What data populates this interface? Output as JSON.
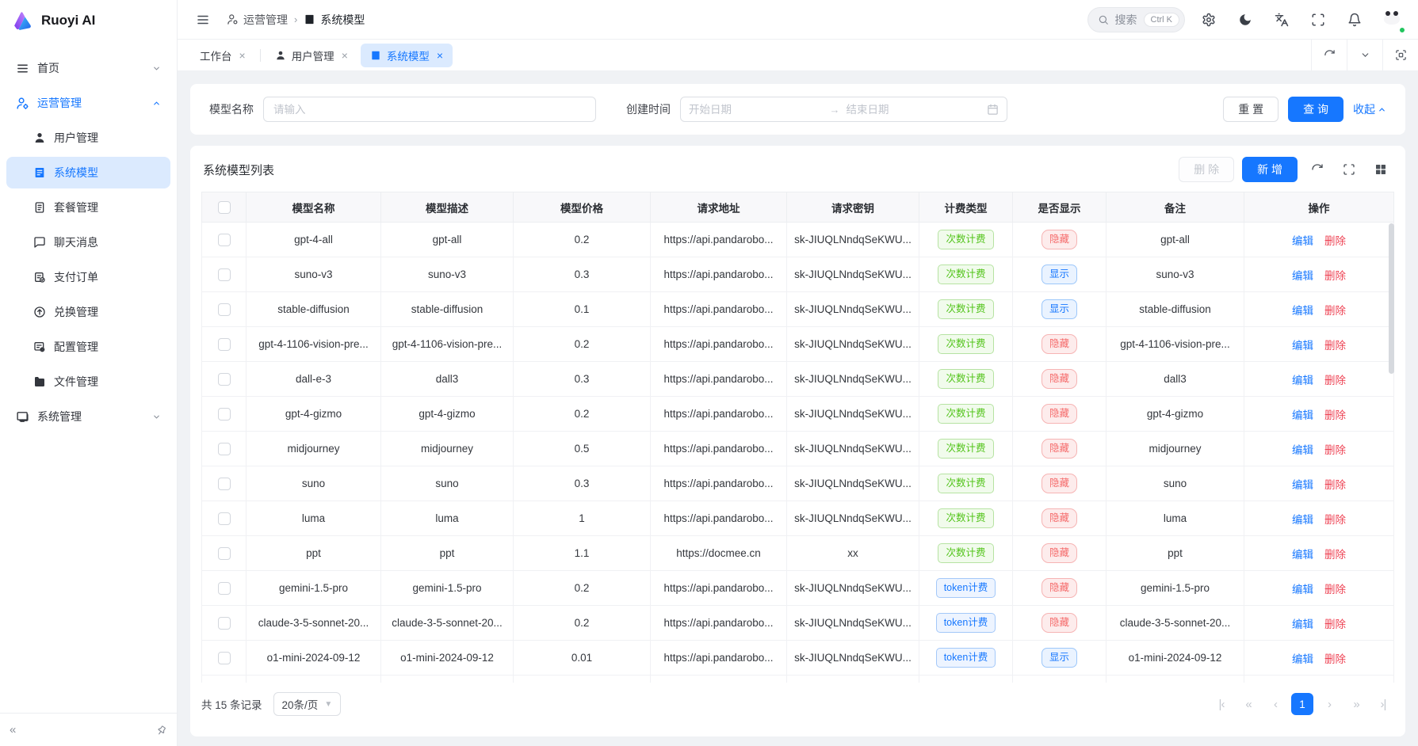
{
  "app": {
    "name": "Ruoyi AI"
  },
  "sidebar": {
    "home": {
      "label": "首页"
    },
    "ops": {
      "label": "运营管理",
      "children": [
        "用户管理",
        "系统模型",
        "套餐管理",
        "聊天消息",
        "支付订单",
        "兑换管理",
        "配置管理",
        "文件管理"
      ]
    },
    "system": {
      "label": "系统管理"
    },
    "collapse": "«"
  },
  "header": {
    "breadcrumb": {
      "parent": "运营管理",
      "current": "系统模型"
    },
    "search": {
      "text": "搜索",
      "shortcut": "Ctrl K"
    }
  },
  "tabs": [
    {
      "label": "工作台"
    },
    {
      "label": "用户管理"
    },
    {
      "label": "系统模型"
    }
  ],
  "filter": {
    "name_label": "模型名称",
    "name_placeholder": "请输入",
    "time_label": "创建时间",
    "start_placeholder": "开始日期",
    "end_placeholder": "结束日期",
    "arrow": "→",
    "reset": "重 置",
    "query": "查 询",
    "collapse": "收起"
  },
  "table": {
    "title": "系统模型列表",
    "delete_btn": "删 除",
    "add_btn": "新 增",
    "columns": [
      "模型名称",
      "模型描述",
      "模型价格",
      "请求地址",
      "请求密钥",
      "计费类型",
      "是否显示",
      "备注",
      "操作"
    ],
    "billing_types": {
      "count": "次数计费",
      "token": "token计费"
    },
    "visibility": {
      "show": "显示",
      "hide": "隐藏"
    },
    "actions": {
      "edit": "编辑",
      "delete": "删除"
    },
    "rows": [
      {
        "name": "gpt-4-all",
        "desc": "gpt-all",
        "price": "0.2",
        "url": "https://api.pandarobo...",
        "key": "sk-JIUQLNndqSeKWU...",
        "billing": "count",
        "visible": false,
        "remark": "gpt-all"
      },
      {
        "name": "suno-v3",
        "desc": "suno-v3",
        "price": "0.3",
        "url": "https://api.pandarobo...",
        "key": "sk-JIUQLNndqSeKWU...",
        "billing": "count",
        "visible": true,
        "remark": "suno-v3"
      },
      {
        "name": "stable-diffusion",
        "desc": "stable-diffusion",
        "price": "0.1",
        "url": "https://api.pandarobo...",
        "key": "sk-JIUQLNndqSeKWU...",
        "billing": "count",
        "visible": true,
        "remark": "stable-diffusion"
      },
      {
        "name": "gpt-4-1106-vision-pre...",
        "desc": "gpt-4-1106-vision-pre...",
        "price": "0.2",
        "url": "https://api.pandarobo...",
        "key": "sk-JIUQLNndqSeKWU...",
        "billing": "count",
        "visible": false,
        "remark": "gpt-4-1106-vision-pre..."
      },
      {
        "name": "dall-e-3",
        "desc": "dall3",
        "price": "0.3",
        "url": "https://api.pandarobo...",
        "key": "sk-JIUQLNndqSeKWU...",
        "billing": "count",
        "visible": false,
        "remark": "dall3"
      },
      {
        "name": "gpt-4-gizmo",
        "desc": "gpt-4-gizmo",
        "price": "0.2",
        "url": "https://api.pandarobo...",
        "key": "sk-JIUQLNndqSeKWU...",
        "billing": "count",
        "visible": false,
        "remark": "gpt-4-gizmo"
      },
      {
        "name": "midjourney",
        "desc": "midjourney",
        "price": "0.5",
        "url": "https://api.pandarobo...",
        "key": "sk-JIUQLNndqSeKWU...",
        "billing": "count",
        "visible": false,
        "remark": "midjourney"
      },
      {
        "name": "suno",
        "desc": "suno",
        "price": "0.3",
        "url": "https://api.pandarobo...",
        "key": "sk-JIUQLNndqSeKWU...",
        "billing": "count",
        "visible": false,
        "remark": "suno"
      },
      {
        "name": "luma",
        "desc": "luma",
        "price": "1",
        "url": "https://api.pandarobo...",
        "key": "sk-JIUQLNndqSeKWU...",
        "billing": "count",
        "visible": false,
        "remark": "luma"
      },
      {
        "name": "ppt",
        "desc": "ppt",
        "price": "1.1",
        "url": "https://docmee.cn",
        "key": "xx",
        "billing": "count",
        "visible": false,
        "remark": "ppt"
      },
      {
        "name": "gemini-1.5-pro",
        "desc": "gemini-1.5-pro",
        "price": "0.2",
        "url": "https://api.pandarobo...",
        "key": "sk-JIUQLNndqSeKWU...",
        "billing": "token",
        "visible": false,
        "remark": "gemini-1.5-pro"
      },
      {
        "name": "claude-3-5-sonnet-20...",
        "desc": "claude-3-5-sonnet-20...",
        "price": "0.2",
        "url": "https://api.pandarobo...",
        "key": "sk-JIUQLNndqSeKWU...",
        "billing": "token",
        "visible": false,
        "remark": "claude-3-5-sonnet-20..."
      },
      {
        "name": "o1-mini-2024-09-12",
        "desc": "o1-mini-2024-09-12",
        "price": "0.01",
        "url": "https://api.pandarobo...",
        "key": "sk-JIUQLNndqSeKWU...",
        "billing": "token",
        "visible": true,
        "remark": "o1-mini-2024-09-12"
      }
    ]
  },
  "pagination": {
    "total": "共 15 条记录",
    "page_size": "20条/页",
    "current": "1",
    "first": "|‹",
    "prev_jump": "«",
    "prev": "‹",
    "next": "›",
    "next_jump": "»",
    "last": "›|"
  }
}
